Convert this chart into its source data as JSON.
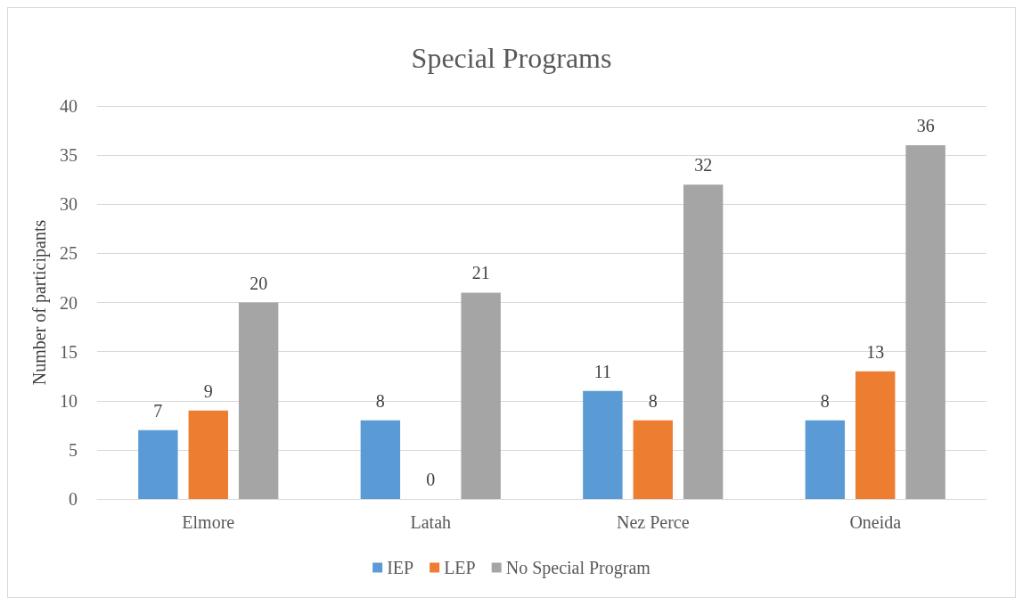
{
  "chart_data": {
    "type": "bar",
    "title": "Special Programs",
    "ylabel": "Number of participants",
    "categories": [
      "Elmore",
      "Latah",
      "Nez Perce",
      "Oneida"
    ],
    "series": [
      {
        "name": "IEP",
        "color": "#5b9bd5",
        "values": [
          7,
          8,
          11,
          8
        ]
      },
      {
        "name": "LEP",
        "color": "#ed7d31",
        "values": [
          9,
          0,
          8,
          13
        ]
      },
      {
        "name": "No Special Program",
        "color": "#a5a5a5",
        "values": [
          20,
          21,
          32,
          36
        ]
      }
    ],
    "ylim": [
      0,
      40
    ],
    "yticks": [
      0,
      5,
      10,
      15,
      20,
      25,
      30,
      35,
      40
    ],
    "grid": "y",
    "legend": "bottom",
    "data_labels": true
  }
}
